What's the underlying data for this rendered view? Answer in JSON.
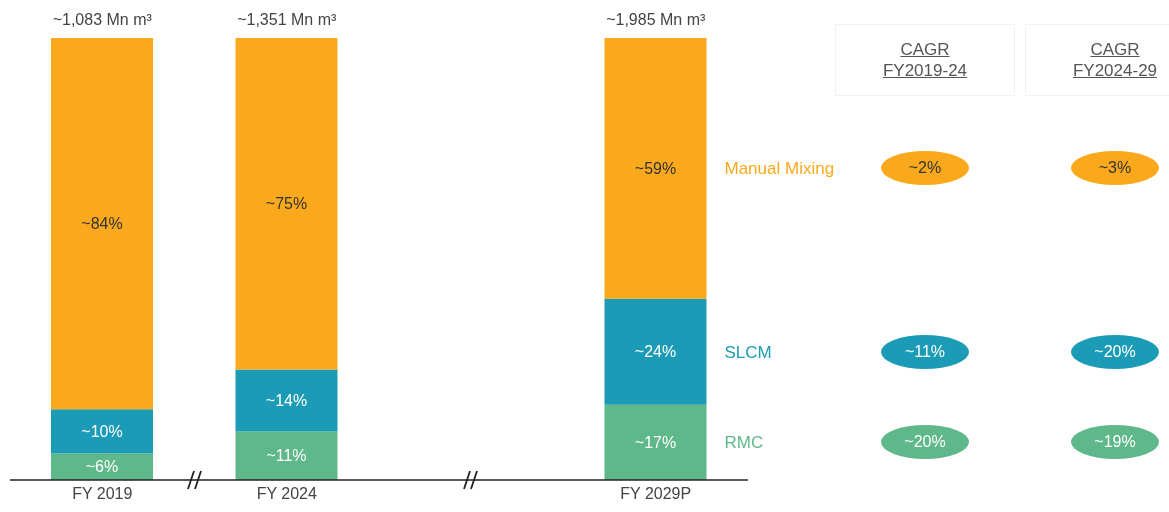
{
  "chart_data": {
    "type": "bar",
    "stacked": true,
    "categories": [
      "FY 2019",
      "FY 2024",
      null,
      "FY 2029P"
    ],
    "ylim": [
      0,
      100
    ],
    "tick_labels": "x",
    "legend": false,
    "grid": false,
    "series": [
      {
        "name": "RMC",
        "color": "#5fb889",
        "values": [
          6,
          11,
          null,
          17
        ],
        "value_labels": [
          "~6%",
          "~11%",
          null,
          "~17%"
        ]
      },
      {
        "name": "SLCM",
        "color": "#1b9bb6",
        "values": [
          10,
          14,
          null,
          24
        ],
        "value_labels": [
          "~10%",
          "~14%",
          null,
          "~24%"
        ]
      },
      {
        "name": "Manual Mixing",
        "color": "#fba91c",
        "values": [
          84,
          75,
          null,
          59
        ],
        "value_labels": [
          "~84%",
          "~75%",
          null,
          "~59%"
        ]
      }
    ],
    "annotations": [
      {
        "text": "~1,083 Mn m³",
        "x": "FY 2019",
        "y": 100
      },
      {
        "text": "~1,351 Mn m³",
        "x": "FY 2024",
        "y": 100
      },
      {
        "text": "~1,985 Mn m³",
        "x": "FY 2029P",
        "y": 100
      },
      "CAGR FY2019-24",
      "CAGR FY2024-29",
      "~20%",
      "~19%",
      "~11%",
      "~20%",
      "~2%",
      "~3%"
    ]
  }
}
